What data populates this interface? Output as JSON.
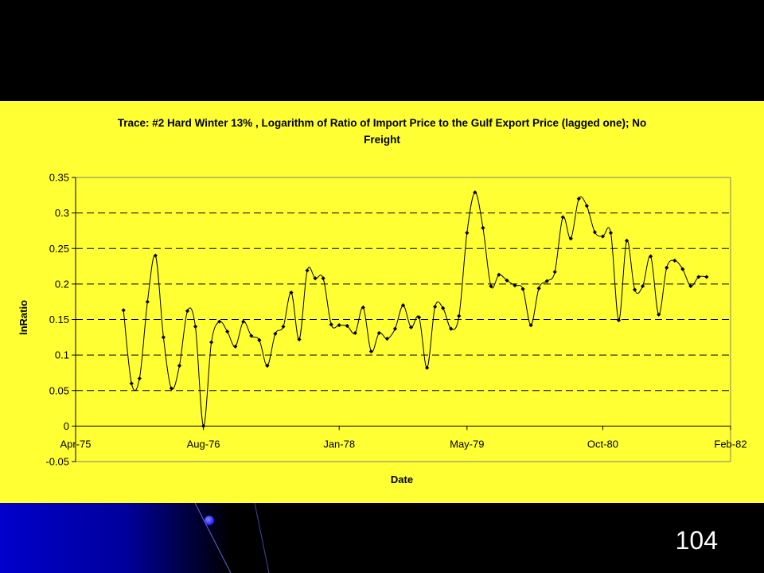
{
  "slide": {
    "page_number": "104",
    "background_color": "#000000",
    "panel_color": "#FFFF33",
    "accent_gradient": [
      "#0000CC",
      "#000000"
    ]
  },
  "chart_data": {
    "type": "line",
    "title_line1": "Trace: #2 Hard Winter 13% , Logarithm of Ratio of Import Price to the Gulf Export Price (lagged one); No",
    "title_line2": "Freight",
    "xlabel": "Date",
    "ylabel": "lnRatio",
    "x_ticks": [
      "Apr-75",
      "Aug-76",
      "Jan-78",
      "May-79",
      "Oct-80",
      "Feb-82"
    ],
    "x_range": [
      "Apr-75",
      "Feb-82"
    ],
    "ylim": [
      -0.05,
      0.35
    ],
    "y_ticks": [
      -0.05,
      0,
      0.05,
      0.1,
      0.15,
      0.2,
      0.25,
      0.3,
      0.35
    ],
    "grid": "horizontal dashed",
    "legend": "none",
    "series": [
      {
        "color": "#000000",
        "marker": "diamond",
        "smooth": true,
        "x": [
          "Oct-75",
          "Nov-75",
          "Dec-75",
          "Jan-76",
          "Feb-76",
          "Mar-76",
          "Apr-76",
          "May-76",
          "Jun-76",
          "Jul-76",
          "Aug-76",
          "Sep-76",
          "Oct-76",
          "Nov-76",
          "Dec-76",
          "Jan-77",
          "Feb-77",
          "Mar-77",
          "Apr-77",
          "May-77",
          "Jun-77",
          "Jul-77",
          "Aug-77",
          "Sep-77",
          "Oct-77",
          "Nov-77",
          "Dec-77",
          "Jan-78",
          "Feb-78",
          "Mar-78",
          "Apr-78",
          "May-78",
          "Jun-78",
          "Jul-78",
          "Aug-78",
          "Sep-78",
          "Oct-78",
          "Nov-78",
          "Dec-78",
          "Jan-79",
          "Feb-79",
          "Mar-79",
          "Apr-79",
          "May-79",
          "Jun-79",
          "Jul-79",
          "Aug-79",
          "Sep-79",
          "Oct-79",
          "Nov-79",
          "Dec-79",
          "Jan-80",
          "Feb-80",
          "Mar-80",
          "Apr-80",
          "May-80",
          "Jun-80",
          "Jul-80",
          "Aug-80",
          "Sep-80",
          "Oct-80",
          "Nov-80",
          "Dec-80",
          "Jan-81",
          "Feb-81",
          "Mar-81",
          "Apr-81",
          "May-81",
          "Jun-81",
          "Jul-81",
          "Aug-81",
          "Sep-81",
          "Oct-81",
          "Nov-81"
        ],
        "values": [
          0.163,
          0.06,
          0.067,
          0.175,
          0.24,
          0.125,
          0.053,
          0.085,
          0.162,
          0.14,
          0.0,
          0.118,
          0.147,
          0.133,
          0.112,
          0.147,
          0.127,
          0.121,
          0.085,
          0.13,
          0.14,
          0.188,
          0.122,
          0.219,
          0.208,
          0.208,
          0.143,
          0.142,
          0.141,
          0.131,
          0.167,
          0.105,
          0.131,
          0.123,
          0.137,
          0.17,
          0.139,
          0.153,
          0.082,
          0.168,
          0.166,
          0.137,
          0.155,
          0.272,
          0.329,
          0.279,
          0.197,
          0.213,
          0.205,
          0.198,
          0.193,
          0.142,
          0.194,
          0.204,
          0.217,
          0.294,
          0.264,
          0.32,
          0.31,
          0.273,
          0.267,
          0.272,
          0.149,
          0.261,
          0.192,
          0.197,
          0.239,
          0.157,
          0.223,
          0.233,
          0.221,
          0.197,
          0.21,
          0.21
        ]
      }
    ]
  }
}
